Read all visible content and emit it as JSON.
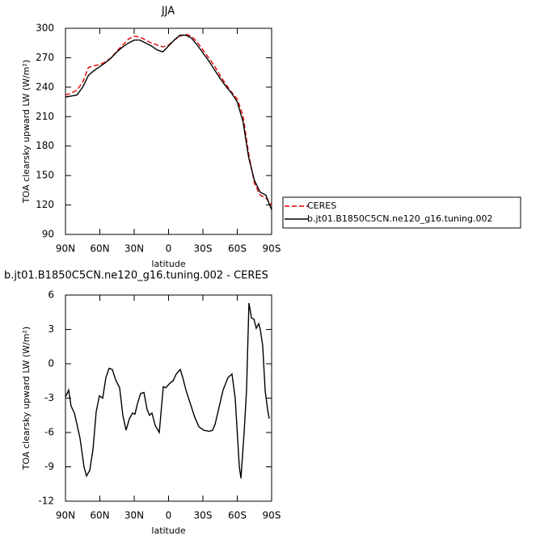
{
  "chart_data": [
    {
      "type": "line",
      "title": "JJA",
      "y_label": "TOA clearsky upward LW (W/m²)",
      "x_label": "latitude",
      "x": [
        90,
        85,
        80,
        75,
        70,
        65,
        60,
        55,
        50,
        45,
        40,
        35,
        30,
        25,
        20,
        15,
        10,
        5,
        0,
        -5,
        -10,
        -15,
        -20,
        -25,
        -30,
        -35,
        -40,
        -45,
        -50,
        -55,
        -60,
        -65,
        -70,
        -75,
        -80,
        -85,
        -90
      ],
      "series": [
        {
          "name": "CERES",
          "color": "#e00000",
          "linestyle": "dashed",
          "values": [
            232,
            234,
            237,
            245,
            260,
            262,
            263,
            266,
            270,
            277,
            283,
            289,
            292,
            291,
            288,
            285,
            283,
            281,
            283,
            288,
            292,
            294,
            292,
            286,
            278,
            270,
            262,
            252,
            243,
            235,
            228,
            211,
            172,
            142,
            130,
            127,
            120
          ]
        },
        {
          "name": "b.jt01.B1850C5CN.ne120_g16.tuning.002",
          "color": "#000000",
          "linestyle": "solid",
          "values": [
            230,
            231,
            232,
            240,
            252,
            257,
            261,
            265,
            270,
            276,
            281,
            285,
            288,
            288,
            285,
            282,
            278,
            276,
            282,
            288,
            293,
            293,
            290,
            283,
            275,
            267,
            258,
            249,
            241,
            234,
            225,
            205,
            168,
            145,
            133,
            130,
            115
          ]
        }
      ],
      "xlim": [
        90,
        -90
      ],
      "ylim": [
        90,
        300
      ],
      "xticks": [
        {
          "value": 90,
          "label": "90N"
        },
        {
          "value": 60,
          "label": "60N"
        },
        {
          "value": 30,
          "label": "30N"
        },
        0,
        {
          "value": -30,
          "label": "30S"
        },
        {
          "value": -60,
          "label": "60S"
        },
        {
          "value": -90,
          "label": "90S"
        }
      ],
      "yticks": [
        90,
        120,
        150,
        180,
        210,
        240,
        270,
        300
      ],
      "legend": "right"
    },
    {
      "type": "line",
      "title": "b.jt01.B1850C5CN.ne120_g16.tuning.002 - CERES",
      "y_label": "TOA clearsky upward LW (W/m²)",
      "x_label": "latitude",
      "x": [
        90,
        87.2,
        85.1,
        82.2,
        77.3,
        73.8,
        71.6,
        68.8,
        66.0,
        63.2,
        60.4,
        57.5,
        54.7,
        51.9,
        49.1,
        46.2,
        42.7,
        39.9,
        37.1,
        34.2,
        31.4,
        29.3,
        27.2,
        24.4,
        21.5,
        18.7,
        16.6,
        14.5,
        11.6,
        8.1,
        4.6,
        2.4,
        -1.1,
        -3.9,
        -6.7,
        -10.2,
        -12.4,
        -15.2,
        -19.4,
        -23.0,
        -26.5,
        -30.7,
        -35.6,
        -38.5,
        -40.6,
        -44.1,
        -47.6,
        -51.9,
        -55.4,
        -58.2,
        -61.8,
        -63.2,
        -66.0,
        -68.1,
        -70.2,
        -72.4,
        -74.5,
        -76.6,
        -78.7,
        -80.1,
        -82.2,
        -84.4,
        -86.5,
        -87.9
      ],
      "values": [
        -2.9,
        -2.3,
        -3.7,
        -4.3,
        -6.5,
        -9.0,
        -9.8,
        -9.3,
        -7.5,
        -4.2,
        -2.8,
        -3.0,
        -1.2,
        -0.4,
        -0.5,
        -1.4,
        -2.1,
        -4.5,
        -5.8,
        -4.8,
        -4.3,
        -4.4,
        -3.5,
        -2.6,
        -2.5,
        -4.0,
        -4.5,
        -4.3,
        -5.4,
        -6.0,
        -2.0,
        -2.1,
        -1.7,
        -1.5,
        -0.9,
        -0.5,
        -1.2,
        -2.3,
        -3.6,
        -4.7,
        -5.5,
        -5.8,
        -5.9,
        -5.8,
        -5.3,
        -3.8,
        -2.3,
        -1.2,
        -0.9,
        -3.0,
        -9.0,
        -10.0,
        -6.0,
        -2.3,
        5.3,
        4.0,
        3.9,
        3.1,
        3.5,
        3.0,
        1.6,
        -2.4,
        -4.0,
        -4.8
      ],
      "color": "#000000",
      "xlim": [
        90,
        -90
      ],
      "ylim": [
        -12,
        6
      ],
      "xticks": [
        {
          "value": 90,
          "label": "90N"
        },
        {
          "value": 60,
          "label": "60N"
        },
        {
          "value": 30,
          "label": "30N"
        },
        0,
        {
          "value": -30,
          "label": "30S"
        },
        {
          "value": -60,
          "label": "60S"
        },
        {
          "value": -90,
          "label": "90S"
        }
      ],
      "yticks": [
        -12,
        -9,
        -6,
        -3,
        0,
        3,
        6
      ]
    }
  ]
}
